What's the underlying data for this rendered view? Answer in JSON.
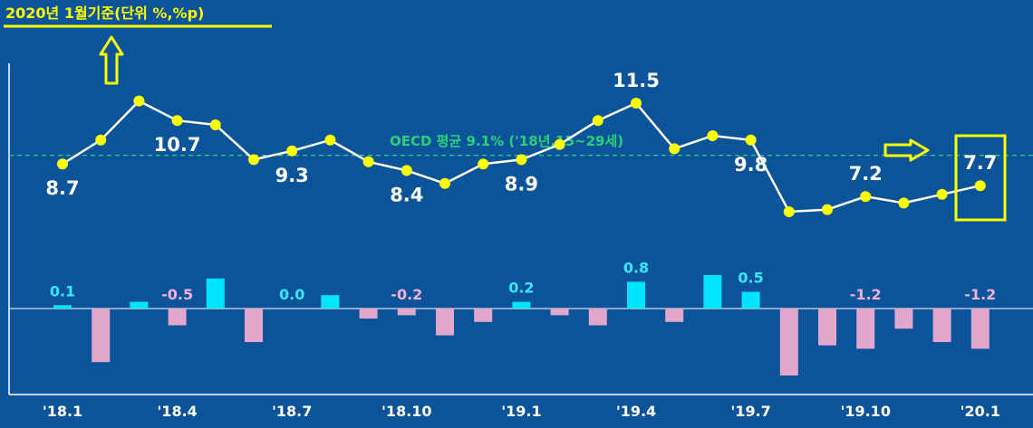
{
  "header": {
    "title": "2020년 1월기준(단위 %,%p)"
  },
  "colors": {
    "background": "#0b5499",
    "line": "#ffffff",
    "point": "#ffff00",
    "annotation": "#ffff00",
    "oecd": "#2ad17a",
    "bar_positive": "#00e5ff",
    "bar_negative": "#e3a6cc",
    "label_positive": "#33e8ff",
    "label_negative": "#f1b0dc",
    "value_label": "#ffffff"
  },
  "chart_data": {
    "type": "line",
    "subtype": "line + bar (monthly rate and month-over-month change)",
    "title": "2020년 1월기준(단위 %,%p)",
    "x": [
      "'18.1",
      "'18.2",
      "'18.3",
      "'18.4",
      "'18.5",
      "'18.6",
      "'18.7",
      "'18.8",
      "'18.9",
      "'18.10",
      "'18.11",
      "'18.12",
      "'19.1",
      "'19.2",
      "'19.3",
      "'19.4",
      "'19.5",
      "'19.6",
      "'19.7",
      "'19.8",
      "'19.9",
      "'19.10",
      "'19.11",
      "'19.12",
      "'20.1"
    ],
    "x_tick_labels": [
      "'18.1",
      "'18.4",
      "'18.7",
      "'18.10",
      "'19.1",
      "'19.4",
      "'19.7",
      "'19.10",
      "'20.1"
    ],
    "series": [
      {
        "kind": "line",
        "values": [
          8.7,
          9.8,
          11.6,
          10.7,
          10.5,
          8.9,
          9.3,
          9.8,
          8.8,
          8.4,
          7.8,
          8.7,
          8.9,
          9.6,
          10.7,
          11.5,
          9.4,
          10.0,
          9.8,
          6.5,
          6.6,
          7.2,
          6.9,
          7.3,
          7.7
        ],
        "labels": [
          {
            "index": 0,
            "text": "8.7"
          },
          {
            "index": 3,
            "text": "10.7"
          },
          {
            "index": 6,
            "text": "9.3"
          },
          {
            "index": 9,
            "text": "8.4"
          },
          {
            "index": 12,
            "text": "8.9"
          },
          {
            "index": 15,
            "text": "11.5"
          },
          {
            "index": 18,
            "text": "9.8"
          },
          {
            "index": 21,
            "text": "7.2"
          },
          {
            "index": 24,
            "text": "7.7"
          }
        ]
      },
      {
        "kind": "bar",
        "values": [
          0.1,
          -1.6,
          0.2,
          -0.5,
          0.9,
          -1.0,
          0.0,
          0.4,
          -0.3,
          -0.2,
          -0.8,
          -0.4,
          0.2,
          -0.2,
          -0.5,
          0.8,
          -0.4,
          1.0,
          0.5,
          -2.0,
          -1.1,
          -1.2,
          -0.6,
          -1.0,
          -1.2
        ],
        "labels": [
          {
            "index": 0,
            "text": "0.1"
          },
          {
            "index": 3,
            "text": "-0.5"
          },
          {
            "index": 6,
            "text": "0.0"
          },
          {
            "index": 9,
            "text": "-0.2"
          },
          {
            "index": 12,
            "text": "0.2"
          },
          {
            "index": 15,
            "text": "0.8"
          },
          {
            "index": 18,
            "text": "0.5"
          },
          {
            "index": 21,
            "text": "-1.2"
          },
          {
            "index": 24,
            "text": "-1.2"
          }
        ]
      }
    ],
    "reference_line": {
      "value": 9.1,
      "label": "OECD 평균 9.1% ('18년,15~29세)",
      "style": "dashed"
    },
    "line_ylim": [
      5.0,
      12.5
    ],
    "bar_ylim": [
      -2.2,
      1.2
    ],
    "grid": false,
    "legend": "none"
  }
}
